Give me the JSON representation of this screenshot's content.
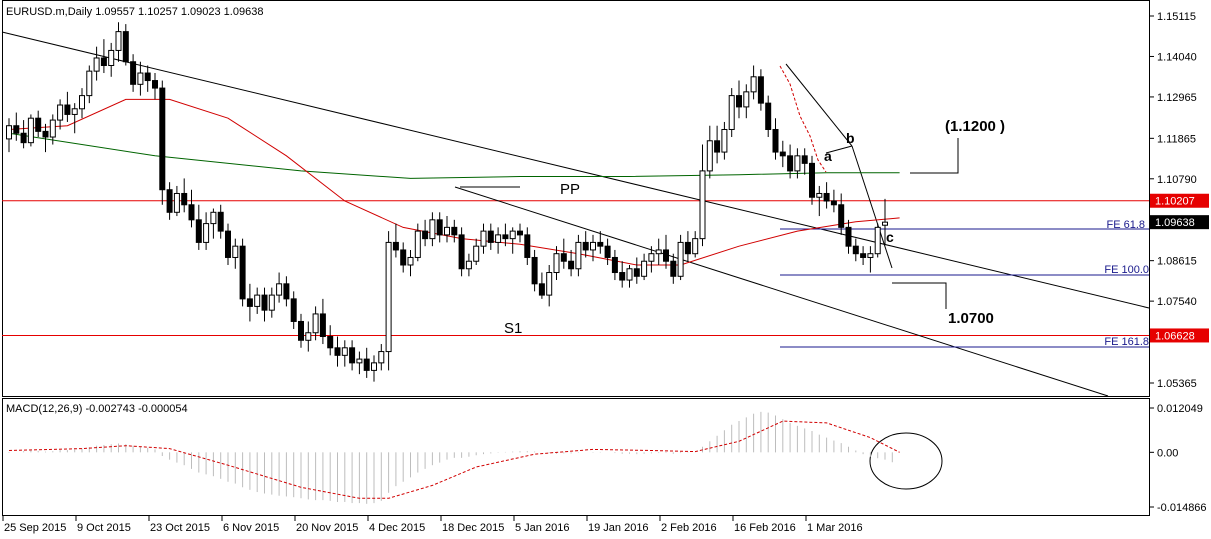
{
  "window": {
    "symbol_header": "EURUSD.m,Daily  1.09557 1.10257 1.09023 1.09638"
  },
  "price_axis": {
    "ticks": [
      "1.15115",
      "1.14040",
      "1.12965",
      "1.11865",
      "1.10790",
      "1.08615",
      "1.07540",
      "1.05365"
    ],
    "tick_values": [
      1.15115,
      1.1404,
      1.12965,
      1.11865,
      1.1079,
      1.08615,
      1.0754,
      1.05365
    ],
    "range": [
      1.0507,
      1.1542
    ],
    "badges": [
      {
        "label": "1.10207",
        "value": 1.10207,
        "color": "#e60000"
      },
      {
        "label": "1.09638",
        "value": 1.09638,
        "color": "#000000"
      },
      {
        "label": "1.06628",
        "value": 1.06628,
        "color": "#e60000"
      }
    ]
  },
  "time_axis": {
    "labels": [
      "25 Sep 2015",
      "9 Oct 2015",
      "23 Oct 2015",
      "6 Nov 2015",
      "20 Nov 2015",
      "4 Dec 2015",
      "18 Dec 2015",
      "5 Jan 2016",
      "19 Jan 2016",
      "2 Feb 2016",
      "16 Feb 2016",
      "1 Mar 2016"
    ]
  },
  "annotations": {
    "pp": "PP",
    "s1": "S1",
    "a": "a",
    "b": "b",
    "c": "c",
    "target_high": "(1.1200 )",
    "target_low": "1.0700",
    "fe_618": "FE 61.8",
    "fe_100": "FE 100.0",
    "fe_1618": "FE 161.8"
  },
  "horizontal_levels": {
    "red_top": 1.10207,
    "red_bottom": 1.06628
  },
  "macd": {
    "title": "MACD(12,26,9) -0.002743 -0.000054",
    "axis_labels": [
      "0.012049",
      "0.00",
      "-0.014866"
    ],
    "axis_values": [
      0.012049,
      0.0,
      -0.014866
    ],
    "range": [
      -0.0162,
      0.0132
    ]
  },
  "colors": {
    "background": "#ffffff",
    "bull_candle": "#ffffff",
    "bear_candle": "#000000",
    "ma_fast": "#d10000",
    "ma_slow": "#006400",
    "level_red": "#e60000",
    "fibo": "#1a1a8c",
    "macd_hist": "#bdbdbd",
    "macd_signal": "#d10000"
  },
  "chart_data": {
    "type": "candlestick",
    "symbol": "EURUSD.m",
    "timeframe": "Daily",
    "ohlc_last": {
      "open": 1.09557,
      "high": 1.10257,
      "low": 1.09023,
      "close": 1.09638
    },
    "candles": [
      [
        1.1185,
        1.124,
        1.115,
        1.122
      ],
      [
        1.122,
        1.1255,
        1.118,
        1.12
      ],
      [
        1.12,
        1.1235,
        1.116,
        1.1175
      ],
      [
        1.1175,
        1.125,
        1.1165,
        1.124
      ],
      [
        1.124,
        1.126,
        1.119,
        1.1205
      ],
      [
        1.1205,
        1.1225,
        1.115,
        1.119
      ],
      [
        1.119,
        1.125,
        1.117,
        1.1235
      ],
      [
        1.1235,
        1.129,
        1.121,
        1.1275
      ],
      [
        1.1275,
        1.131,
        1.123,
        1.125
      ],
      [
        1.125,
        1.128,
        1.12,
        1.1265
      ],
      [
        1.1265,
        1.132,
        1.124,
        1.13
      ],
      [
        1.13,
        1.138,
        1.128,
        1.1365
      ],
      [
        1.1365,
        1.143,
        1.134,
        1.14
      ],
      [
        1.14,
        1.145,
        1.136,
        1.138
      ],
      [
        1.138,
        1.144,
        1.135,
        1.142
      ],
      [
        1.142,
        1.1495,
        1.139,
        1.147
      ],
      [
        1.147,
        1.149,
        1.138,
        1.139
      ],
      [
        1.139,
        1.141,
        1.131,
        1.133
      ],
      [
        1.133,
        1.139,
        1.13,
        1.136
      ],
      [
        1.136,
        1.138,
        1.131,
        1.134
      ],
      [
        1.134,
        1.136,
        1.129,
        1.132
      ],
      [
        1.132,
        1.134,
        1.101,
        1.105
      ],
      [
        1.105,
        1.107,
        1.097,
        1.099
      ],
      [
        1.099,
        1.106,
        1.098,
        1.104
      ],
      [
        1.104,
        1.108,
        1.099,
        1.101
      ],
      [
        1.101,
        1.105,
        1.095,
        1.097
      ],
      [
        1.097,
        1.101,
        1.089,
        1.091
      ],
      [
        1.091,
        1.099,
        1.089,
        1.096
      ],
      [
        1.096,
        1.1,
        1.092,
        1.099
      ],
      [
        1.099,
        1.101,
        1.092,
        1.094
      ],
      [
        1.094,
        1.096,
        1.085,
        1.087
      ],
      [
        1.087,
        1.092,
        1.084,
        1.09
      ],
      [
        1.09,
        1.092,
        1.074,
        1.076
      ],
      [
        1.076,
        1.08,
        1.07,
        1.074
      ],
      [
        1.074,
        1.079,
        1.072,
        1.077
      ],
      [
        1.077,
        1.079,
        1.07,
        1.073
      ],
      [
        1.073,
        1.079,
        1.071,
        1.077
      ],
      [
        1.077,
        1.083,
        1.075,
        1.08
      ],
      [
        1.08,
        1.082,
        1.074,
        1.076
      ],
      [
        1.076,
        1.078,
        1.068,
        1.07
      ],
      [
        1.07,
        1.072,
        1.063,
        1.065
      ],
      [
        1.065,
        1.07,
        1.062,
        1.067
      ],
      [
        1.067,
        1.074,
        1.065,
        1.072
      ],
      [
        1.072,
        1.076,
        1.064,
        1.066
      ],
      [
        1.066,
        1.069,
        1.061,
        1.063
      ],
      [
        1.063,
        1.066,
        1.058,
        1.061
      ],
      [
        1.061,
        1.065,
        1.058,
        1.063
      ],
      [
        1.063,
        1.065,
        1.057,
        1.059
      ],
      [
        1.059,
        1.062,
        1.056,
        1.06
      ],
      [
        1.06,
        1.063,
        1.055,
        1.057
      ],
      [
        1.057,
        1.061,
        1.054,
        1.059
      ],
      [
        1.059,
        1.064,
        1.057,
        1.062
      ],
      [
        1.062,
        1.094,
        1.057,
        1.091
      ],
      [
        1.091,
        1.096,
        1.087,
        1.089
      ],
      [
        1.089,
        1.091,
        1.083,
        1.085
      ],
      [
        1.085,
        1.089,
        1.082,
        1.087
      ],
      [
        1.087,
        1.096,
        1.086,
        1.094
      ],
      [
        1.094,
        1.097,
        1.09,
        1.092
      ],
      [
        1.092,
        1.099,
        1.09,
        1.097
      ],
      [
        1.097,
        1.099,
        1.091,
        1.093
      ],
      [
        1.093,
        1.098,
        1.091,
        1.095
      ],
      [
        1.095,
        1.097,
        1.091,
        1.093
      ],
      [
        1.093,
        1.095,
        1.082,
        1.084
      ],
      [
        1.084,
        1.088,
        1.082,
        1.086
      ],
      [
        1.086,
        1.092,
        1.085,
        1.09
      ],
      [
        1.09,
        1.096,
        1.088,
        1.094
      ],
      [
        1.094,
        1.096,
        1.089,
        1.091
      ],
      [
        1.091,
        1.095,
        1.088,
        1.093
      ],
      [
        1.093,
        1.096,
        1.09,
        1.092
      ],
      [
        1.092,
        1.095,
        1.088,
        1.094
      ],
      [
        1.094,
        1.096,
        1.091,
        1.093
      ],
      [
        1.093,
        1.095,
        1.085,
        1.087
      ],
      [
        1.087,
        1.089,
        1.078,
        1.08
      ],
      [
        1.08,
        1.083,
        1.076,
        1.077
      ],
      [
        1.077,
        1.085,
        1.074,
        1.083
      ],
      [
        1.083,
        1.09,
        1.081,
        1.088
      ],
      [
        1.088,
        1.092,
        1.084,
        1.086
      ],
      [
        1.086,
        1.089,
        1.082,
        1.084
      ],
      [
        1.084,
        1.093,
        1.082,
        1.091
      ],
      [
        1.091,
        1.094,
        1.087,
        1.089
      ],
      [
        1.089,
        1.093,
        1.086,
        1.091
      ],
      [
        1.091,
        1.094,
        1.088,
        1.09
      ],
      [
        1.09,
        1.092,
        1.085,
        1.087
      ],
      [
        1.087,
        1.089,
        1.081,
        1.083
      ],
      [
        1.083,
        1.086,
        1.079,
        1.081
      ],
      [
        1.081,
        1.085,
        1.079,
        1.084
      ],
      [
        1.084,
        1.087,
        1.08,
        1.082
      ],
      [
        1.082,
        1.088,
        1.081,
        1.086
      ],
      [
        1.086,
        1.09,
        1.083,
        1.088
      ],
      [
        1.088,
        1.092,
        1.085,
        1.089
      ],
      [
        1.089,
        1.093,
        1.084,
        1.086
      ],
      [
        1.086,
        1.088,
        1.08,
        1.082
      ],
      [
        1.082,
        1.093,
        1.081,
        1.091
      ],
      [
        1.091,
        1.094,
        1.086,
        1.088
      ],
      [
        1.088,
        1.094,
        1.087,
        1.092
      ],
      [
        1.092,
        1.117,
        1.09,
        1.11
      ],
      [
        1.11,
        1.122,
        1.108,
        1.118
      ],
      [
        1.118,
        1.122,
        1.112,
        1.115
      ],
      [
        1.115,
        1.123,
        1.113,
        1.121
      ],
      [
        1.121,
        1.132,
        1.119,
        1.13
      ],
      [
        1.13,
        1.134,
        1.124,
        1.127
      ],
      [
        1.127,
        1.133,
        1.124,
        1.131
      ],
      [
        1.131,
        1.138,
        1.129,
        1.135
      ],
      [
        1.135,
        1.137,
        1.126,
        1.128
      ],
      [
        1.128,
        1.13,
        1.119,
        1.121
      ],
      [
        1.121,
        1.124,
        1.113,
        1.115
      ],
      [
        1.115,
        1.118,
        1.111,
        1.114
      ],
      [
        1.114,
        1.117,
        1.108,
        1.11
      ],
      [
        1.11,
        1.116,
        1.108,
        1.114
      ],
      [
        1.114,
        1.116,
        1.109,
        1.112
      ],
      [
        1.112,
        1.114,
        1.101,
        1.103
      ],
      [
        1.103,
        1.106,
        1.098,
        1.104
      ],
      [
        1.104,
        1.107,
        1.1,
        1.102
      ],
      [
        1.102,
        1.105,
        1.099,
        1.101
      ],
      [
        1.101,
        1.104,
        1.093,
        1.095
      ],
      [
        1.095,
        1.097,
        1.088,
        1.09
      ],
      [
        1.09,
        1.092,
        1.086,
        1.088
      ],
      [
        1.088,
        1.09,
        1.085,
        1.087
      ],
      [
        1.087,
        1.09,
        1.083,
        1.088
      ],
      [
        1.088,
        1.096,
        1.087,
        1.095
      ],
      [
        1.09557,
        1.10257,
        1.09023,
        1.09638
      ]
    ],
    "ma_fast": [
      [
        0,
        1.121
      ],
      [
        8,
        1.122
      ],
      [
        16,
        1.129
      ],
      [
        22,
        1.129
      ],
      [
        30,
        1.124
      ],
      [
        38,
        1.114
      ],
      [
        46,
        1.102
      ],
      [
        54,
        1.095
      ],
      [
        62,
        1.092
      ],
      [
        70,
        1.0905
      ],
      [
        78,
        1.088
      ],
      [
        86,
        1.085
      ],
      [
        92,
        1.085
      ],
      [
        100,
        1.09
      ],
      [
        108,
        1.094
      ],
      [
        116,
        1.0965
      ],
      [
        122,
        1.0975
      ]
    ],
    "ma_slow": [
      [
        0,
        1.12
      ],
      [
        20,
        1.114
      ],
      [
        40,
        1.11
      ],
      [
        55,
        1.108
      ],
      [
        70,
        1.1085
      ],
      [
        85,
        1.1085
      ],
      [
        100,
        1.109
      ],
      [
        112,
        1.1095
      ],
      [
        122,
        1.1095
      ]
    ],
    "macd_histogram": [
      -0.0002,
      0.0,
      0.0003,
      0.0005,
      0.0004,
      0.0002,
      0.0003,
      0.0006,
      0.0006,
      0.0008,
      0.001,
      0.0014,
      0.0018,
      0.002,
      0.0022,
      0.0024,
      0.0022,
      0.0018,
      0.0016,
      0.0012,
      0.0008,
      -0.001,
      -0.002,
      -0.0028,
      -0.0035,
      -0.0045,
      -0.0055,
      -0.006,
      -0.0065,
      -0.0072,
      -0.008,
      -0.0085,
      -0.0095,
      -0.0102,
      -0.0108,
      -0.0112,
      -0.0115,
      -0.0118,
      -0.012,
      -0.0122,
      -0.0125,
      -0.0128,
      -0.013,
      -0.013,
      -0.0132,
      -0.0135,
      -0.0135,
      -0.0138,
      -0.0138,
      -0.014,
      -0.0138,
      -0.0132,
      -0.011,
      -0.0092,
      -0.008,
      -0.0068,
      -0.0055,
      -0.0045,
      -0.0035,
      -0.0028,
      -0.002,
      -0.0015,
      -0.0015,
      -0.0012,
      -0.0008,
      -0.0005,
      -0.0003,
      -0.0001,
      0.0001,
      0.0002,
      0.0003,
      0.0003,
      0.0002,
      0.0,
      -0.0002,
      -0.0004,
      -0.0003,
      -0.0003,
      -0.0001,
      0.0,
      0.0001,
      0.0001,
      0.0,
      -0.0002,
      -0.0004,
      -0.0004,
      -0.0005,
      -0.0004,
      -0.0003,
      -0.0002,
      -0.0002,
      -0.0004,
      -0.0002,
      -0.0001,
      0.0,
      0.0015,
      0.003,
      0.0045,
      0.006,
      0.0075,
      0.0085,
      0.0095,
      0.0105,
      0.011,
      0.0108,
      0.01,
      0.009,
      0.008,
      0.0072,
      0.0065,
      0.0058,
      0.0048,
      0.004,
      0.0032,
      0.0025,
      0.0015,
      0.0005,
      -0.0005,
      -0.0012,
      -0.0016,
      -0.002,
      -0.0027
    ],
    "macd_signal": [
      [
        0,
        0.0005
      ],
      [
        10,
        0.001
      ],
      [
        16,
        0.0018
      ],
      [
        22,
        0.001
      ],
      [
        30,
        -0.0035
      ],
      [
        40,
        -0.0095
      ],
      [
        48,
        -0.0125
      ],
      [
        52,
        -0.0125
      ],
      [
        58,
        -0.009
      ],
      [
        64,
        -0.004
      ],
      [
        72,
        -0.0005
      ],
      [
        80,
        0.0008
      ],
      [
        88,
        0.0005
      ],
      [
        94,
        0.0002
      ],
      [
        100,
        0.003
      ],
      [
        106,
        0.0085
      ],
      [
        112,
        0.008
      ],
      [
        118,
        0.004
      ],
      [
        122,
        0.0
      ]
    ]
  }
}
